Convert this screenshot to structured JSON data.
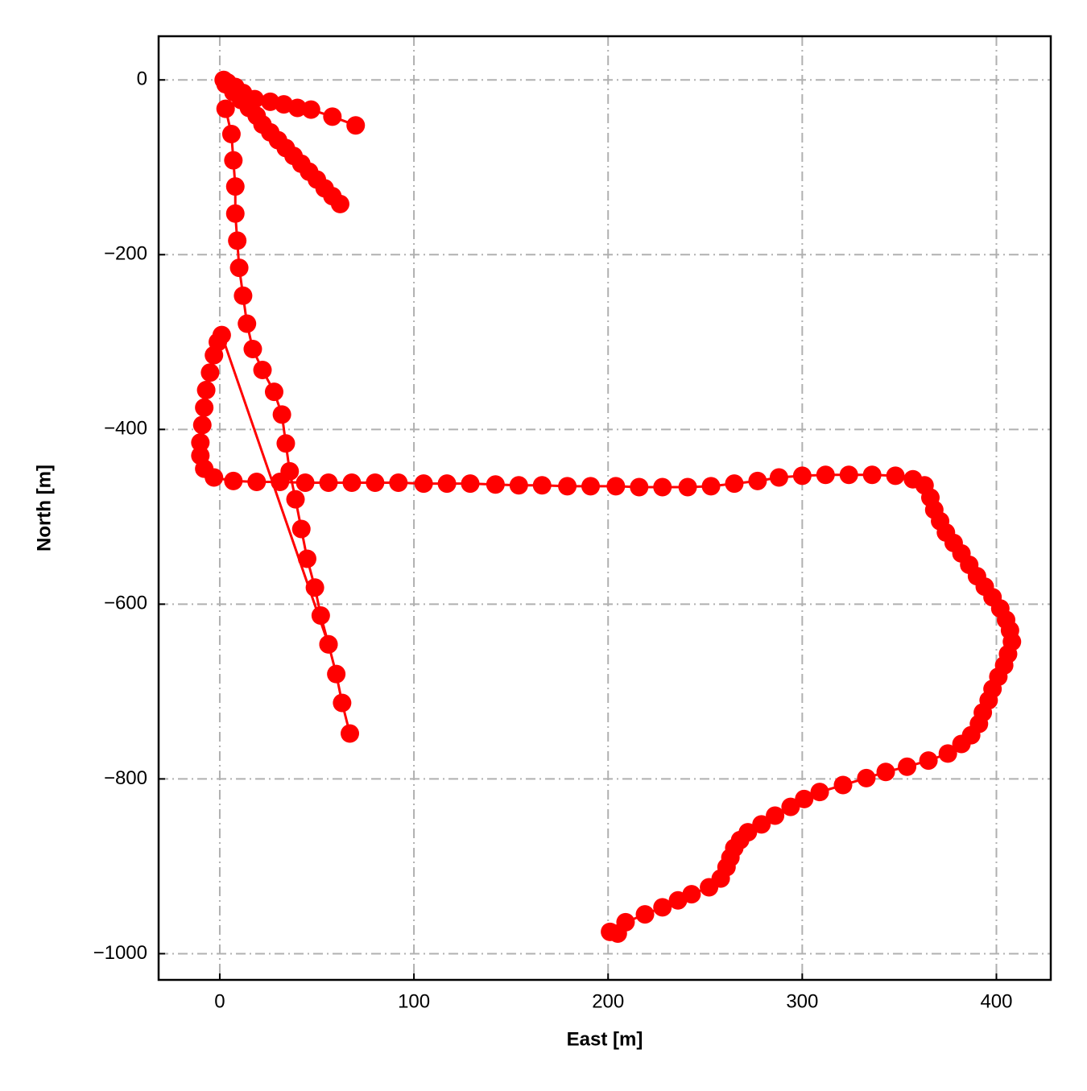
{
  "chart_data": {
    "type": "line",
    "xlabel": "East [m]",
    "ylabel": "North [m]",
    "color": "#ff0000",
    "x": [
      2,
      4,
      8,
      12,
      18,
      26,
      33,
      40,
      47,
      58,
      70,
      null,
      3,
      7,
      11,
      15,
      19,
      22,
      26,
      30,
      34,
      38,
      42,
      46,
      50,
      54,
      58,
      62,
      null,
      3,
      6,
      7,
      8,
      8,
      9,
      10,
      12,
      14,
      17,
      22,
      28,
      32,
      34,
      36,
      39,
      42,
      45,
      49,
      52,
      56,
      60,
      63,
      67,
      null,
      56,
      1,
      -1,
      -3,
      -5,
      -7,
      -8,
      -9,
      -10,
      -10,
      -8,
      -3,
      7,
      19,
      31,
      44,
      56,
      68,
      80,
      92,
      105,
      117,
      129,
      142,
      154,
      166,
      179,
      191,
      204,
      216,
      228,
      241,
      253,
      265,
      277,
      288,
      300,
      312,
      324,
      336,
      348,
      357,
      363,
      366,
      368,
      371,
      374,
      378,
      382,
      386,
      390,
      394,
      398,
      402,
      405,
      407,
      408,
      406,
      404,
      401,
      398,
      396,
      393,
      391,
      387,
      382,
      375,
      365,
      354,
      343,
      333,
      321,
      309,
      301,
      294,
      286,
      279,
      272,
      268,
      265,
      263,
      261,
      258,
      252,
      243,
      236,
      228,
      219,
      209,
      205,
      201
    ],
    "values": [
      0,
      -3,
      -8,
      -15,
      -22,
      -25,
      -28,
      -32,
      -34,
      -42,
      -52,
      null,
      -5,
      -14,
      -23,
      -32,
      -41,
      -51,
      -60,
      -69,
      -78,
      -87,
      -96,
      -105,
      -114,
      -124,
      -133,
      -142,
      null,
      -33,
      -62,
      -92,
      -122,
      -153,
      -184,
      -215,
      -247,
      -279,
      -308,
      -332,
      -357,
      -383,
      -416,
      -448,
      -480,
      -514,
      -548,
      -581,
      -613,
      -646,
      -680,
      -713,
      -748,
      null,
      -646,
      -292,
      -300,
      -315,
      -335,
      -355,
      -375,
      -395,
      -415,
      -430,
      -445,
      -455,
      -459,
      -460,
      -460,
      -461,
      -461,
      -461,
      -461,
      -461,
      -462,
      -462,
      -462,
      -463,
      -464,
      -464,
      -465,
      -465,
      -465,
      -466,
      -466,
      -466,
      -465,
      -462,
      -459,
      -455,
      -453,
      -452,
      -452,
      -452,
      -453,
      -457,
      -464,
      -478,
      -492,
      -505,
      -518,
      -530,
      -542,
      -555,
      -568,
      -580,
      -592,
      -605,
      -618,
      -630,
      -643,
      -657,
      -670,
      -683,
      -697,
      -710,
      -724,
      -737,
      -750,
      -760,
      -771,
      -779,
      -786,
      -792,
      -799,
      -807,
      -815,
      -823,
      -832,
      -842,
      -852,
      -861,
      -870,
      -879,
      -890,
      -901,
      -914,
      -924,
      -932,
      -939,
      -947,
      -955,
      -964,
      -977,
      -975
    ],
    "xlim": [
      -31.5,
      428
    ],
    "ylim": [
      -1030,
      50
    ],
    "xticks": [
      0,
      100,
      200,
      300,
      400
    ],
    "yticks": [
      0,
      {
        "value": -200,
        "label": "−200"
      },
      {
        "value": -400,
        "label": "−400"
      },
      {
        "value": -600,
        "label": "−600"
      },
      {
        "value": -800,
        "label": "−800"
      },
      {
        "value": -1000,
        "label": "−1000"
      }
    ],
    "grid": true
  }
}
